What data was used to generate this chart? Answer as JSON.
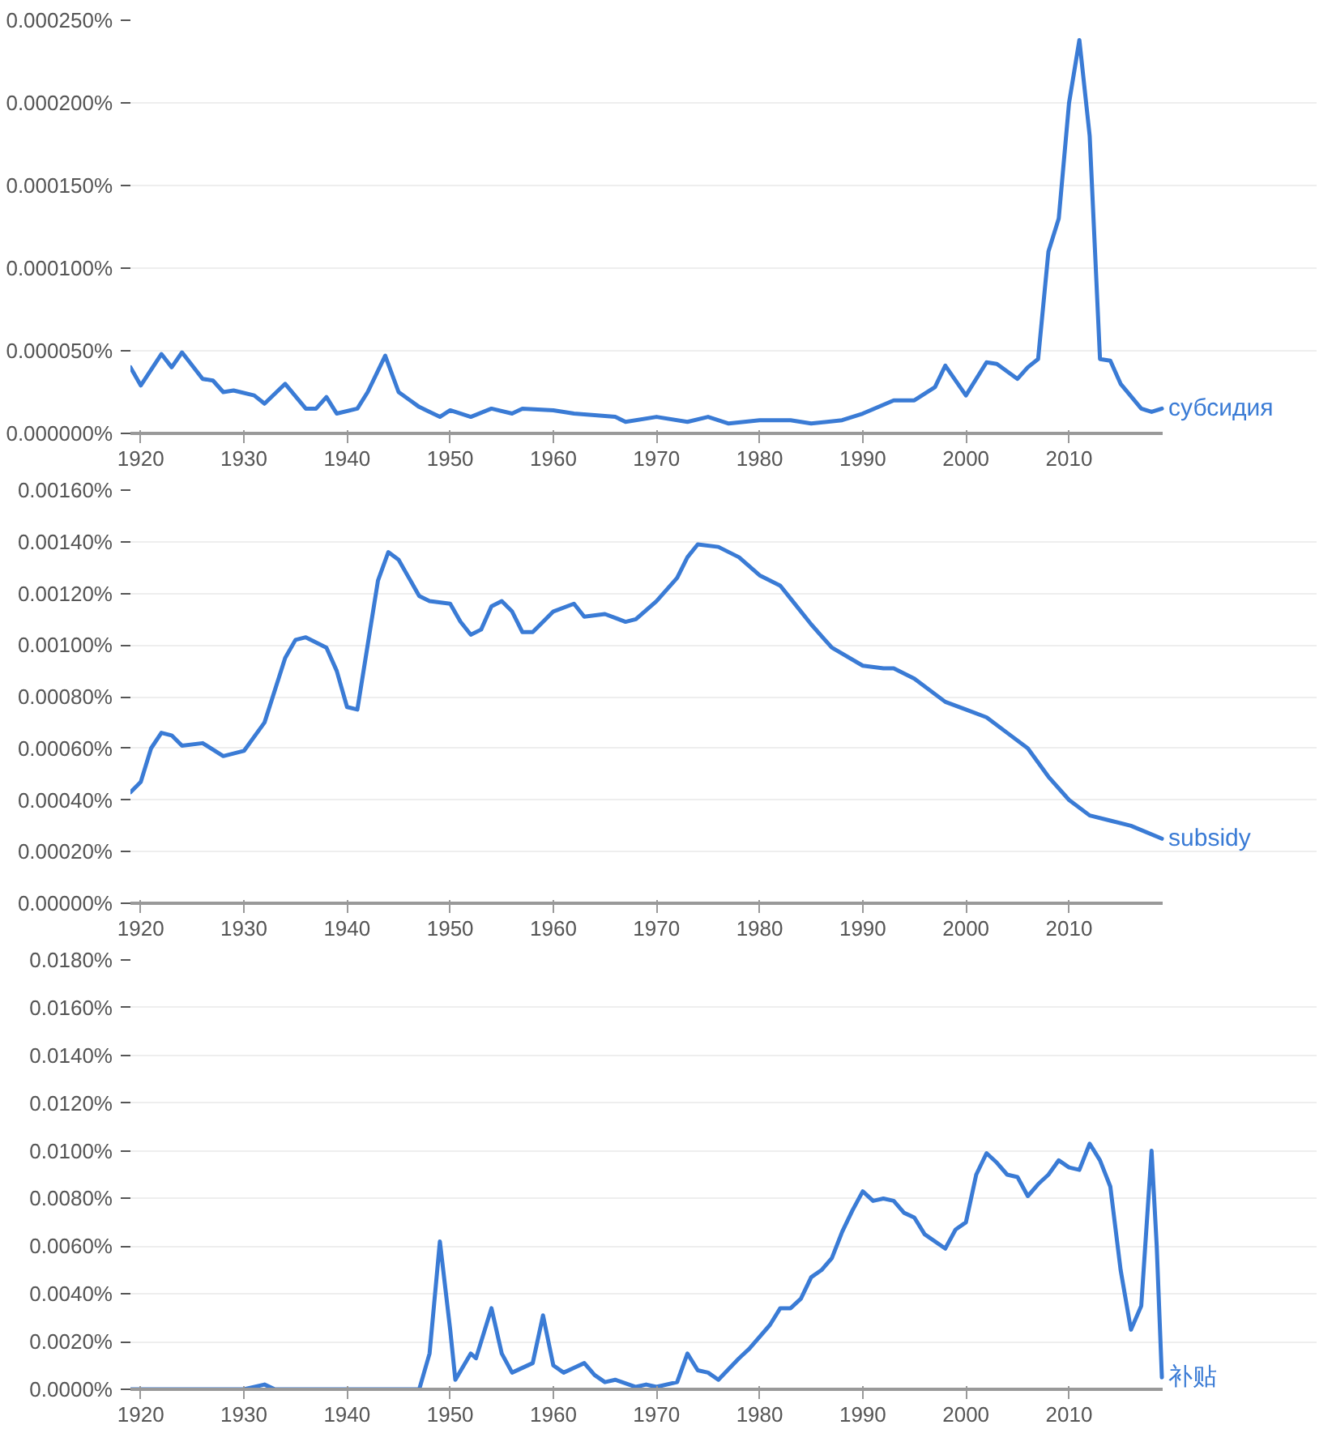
{
  "chart_data": [
    {
      "type": "line",
      "grid": "y",
      "xlim": [
        1919,
        2019
      ],
      "xticks": [
        1920,
        1930,
        1940,
        1950,
        1960,
        1970,
        1980,
        1990,
        2000,
        2010
      ],
      "ylim": [
        0,
        0.00025
      ],
      "yticks": [
        {
          "value": 0,
          "label": "0.000000%"
        },
        {
          "value": 5e-05,
          "label": "0.000050%"
        },
        {
          "value": 0.0001,
          "label": "0.000100%"
        },
        {
          "value": 0.00015,
          "label": "0.000150%"
        },
        {
          "value": 0.0002,
          "label": "0.000200%"
        },
        {
          "value": 0.00025,
          "label": "0.000250%"
        }
      ],
      "series": [
        {
          "name": "субсидия",
          "color": "#3a7bd5",
          "x": [
            1919,
            1920,
            1922,
            1923,
            1924,
            1926,
            1927,
            1928,
            1929,
            1931,
            1932,
            1934,
            1936,
            1937,
            1938,
            1939,
            1941,
            1942,
            1943.7,
            1945,
            1947,
            1949,
            1950,
            1952,
            1954,
            1956,
            1957,
            1960,
            1962,
            1964,
            1966,
            1967,
            1970,
            1973,
            1975,
            1977,
            1980,
            1983,
            1985,
            1988,
            1990,
            1993,
            1995,
            1997,
            1998,
            2000,
            2002,
            2003,
            2005,
            2006,
            2007,
            2008,
            2009,
            2010,
            2011,
            2012,
            2013,
            2014,
            2015,
            2017,
            2018,
            2019
          ],
          "values": [
            4e-05,
            2.9e-05,
            4.8e-05,
            4e-05,
            4.9e-05,
            3.3e-05,
            3.2e-05,
            2.5e-05,
            2.6e-05,
            2.3e-05,
            1.8e-05,
            3e-05,
            1.5e-05,
            1.5e-05,
            2.2e-05,
            1.2e-05,
            1.5e-05,
            2.5e-05,
            4.7e-05,
            2.5e-05,
            1.6e-05,
            1e-05,
            1.4e-05,
            1e-05,
            1.5e-05,
            1.2e-05,
            1.5e-05,
            1.4e-05,
            1.2e-05,
            1.1e-05,
            1e-05,
            7e-06,
            1e-05,
            7e-06,
            1e-05,
            6e-06,
            8e-06,
            8e-06,
            6e-06,
            8e-06,
            1.2e-05,
            2e-05,
            2e-05,
            2.8e-05,
            4.1e-05,
            2.3e-05,
            4.3e-05,
            4.2e-05,
            3.3e-05,
            4e-05,
            4.5e-05,
            0.00011,
            0.00013,
            0.0002,
            0.000238,
            0.00018,
            4.5e-05,
            4.4e-05,
            3e-05,
            1.5e-05,
            1.3e-05,
            1.5e-05
          ]
        }
      ]
    },
    {
      "type": "line",
      "grid": "y",
      "xlim": [
        1919,
        2019
      ],
      "xticks": [
        1920,
        1930,
        1940,
        1950,
        1960,
        1970,
        1980,
        1990,
        2000,
        2010
      ],
      "ylim": [
        0,
        0.0016
      ],
      "yticks": [
        {
          "value": 0,
          "label": "0.00000%"
        },
        {
          "value": 0.0002,
          "label": "0.00020%"
        },
        {
          "value": 0.0004,
          "label": "0.00040%"
        },
        {
          "value": 0.0006,
          "label": "0.00060%"
        },
        {
          "value": 0.0008,
          "label": "0.00080%"
        },
        {
          "value": 0.001,
          "label": "0.00100%"
        },
        {
          "value": 0.0012,
          "label": "0.00120%"
        },
        {
          "value": 0.0014,
          "label": "0.00140%"
        },
        {
          "value": 0.0016,
          "label": "0.00160%"
        }
      ],
      "series": [
        {
          "name": "subsidy",
          "color": "#3a7bd5",
          "x": [
            1919,
            1920,
            1921,
            1922,
            1923,
            1924,
            1926,
            1928,
            1930,
            1932,
            1934,
            1935,
            1936,
            1938,
            1939,
            1940,
            1941,
            1942,
            1943,
            1944,
            1945,
            1946,
            1947,
            1948,
            1950,
            1951,
            1952,
            1953,
            1954,
            1955,
            1956,
            1957,
            1958,
            1960,
            1962,
            1963,
            1965,
            1967,
            1968,
            1970,
            1972,
            1973,
            1974,
            1976,
            1978,
            1980,
            1982,
            1983,
            1985,
            1987,
            1990,
            1992,
            1993,
            1995,
            1998,
            2000,
            2002,
            2004,
            2006,
            2008,
            2010,
            2012,
            2014,
            2016,
            2019
          ],
          "values": [
            0.00043,
            0.00047,
            0.0006,
            0.00066,
            0.00065,
            0.00061,
            0.00062,
            0.00057,
            0.00059,
            0.0007,
            0.00095,
            0.00102,
            0.00103,
            0.00099,
            0.0009,
            0.00076,
            0.00075,
            0.001,
            0.00125,
            0.00136,
            0.00133,
            0.00126,
            0.00119,
            0.00117,
            0.00116,
            0.00109,
            0.00104,
            0.00106,
            0.00115,
            0.00117,
            0.00113,
            0.00105,
            0.00105,
            0.00113,
            0.00116,
            0.00111,
            0.00112,
            0.00109,
            0.0011,
            0.00117,
            0.00126,
            0.00134,
            0.00139,
            0.00138,
            0.00134,
            0.00127,
            0.00123,
            0.00118,
            0.00108,
            0.00099,
            0.00092,
            0.00091,
            0.00091,
            0.00087,
            0.00078,
            0.00075,
            0.00072,
            0.00066,
            0.0006,
            0.00049,
            0.0004,
            0.00034,
            0.00032,
            0.0003,
            0.00025
          ]
        }
      ]
    },
    {
      "type": "line",
      "grid": "y",
      "xlim": [
        1919,
        2019
      ],
      "xticks": [
        1920,
        1930,
        1940,
        1950,
        1960,
        1970,
        1980,
        1990,
        2000,
        2010
      ],
      "ylim": [
        0,
        0.018
      ],
      "yticks": [
        {
          "value": 0,
          "label": "0.0000%"
        },
        {
          "value": 0.002,
          "label": "0.0020%"
        },
        {
          "value": 0.004,
          "label": "0.0040%"
        },
        {
          "value": 0.006,
          "label": "0.0060%"
        },
        {
          "value": 0.008,
          "label": "0.0080%"
        },
        {
          "value": 0.01,
          "label": "0.0100%"
        },
        {
          "value": 0.012,
          "label": "0.0120%"
        },
        {
          "value": 0.014,
          "label": "0.0140%"
        },
        {
          "value": 0.016,
          "label": "0.0160%"
        },
        {
          "value": 0.018,
          "label": "0.0180%"
        }
      ],
      "series": [
        {
          "name": "补贴",
          "color": "#3a7bd5",
          "x": [
            1919,
            1930,
            1932,
            1933,
            1947,
            1948,
            1949,
            1950,
            1950.5,
            1952,
            1952.5,
            1954,
            1955,
            1956,
            1958,
            1959,
            1960,
            1961,
            1962,
            1963,
            1964,
            1965,
            1966,
            1968,
            1969,
            1970,
            1972,
            1973,
            1974,
            1975,
            1976,
            1978,
            1979,
            1981,
            1982,
            1983,
            1984,
            1985,
            1986,
            1987,
            1988,
            1989,
            1990,
            1991,
            1992,
            1993,
            1994,
            1995,
            1996,
            1998,
            1999,
            2000,
            2001,
            2002,
            2003,
            2004,
            2005,
            2006,
            2007,
            2008,
            2009,
            2010,
            2011,
            2012,
            2013,
            2014,
            2015,
            2016,
            2017,
            2018,
            2018.5,
            2019
          ],
          "values": [
            0,
            0,
            0.0002,
            0,
            0,
            0.0015,
            0.0062,
            0.0025,
            0.0004,
            0.0015,
            0.0013,
            0.0034,
            0.0015,
            0.0007,
            0.0011,
            0.0031,
            0.001,
            0.0007,
            0.0009,
            0.0011,
            0.0006,
            0.0003,
            0.0004,
            0.0001,
            0.0002,
            0.0001,
            0.0003,
            0.0015,
            0.0008,
            0.0007,
            0.0004,
            0.0013,
            0.0017,
            0.0027,
            0.0034,
            0.0034,
            0.0038,
            0.0047,
            0.005,
            0.0055,
            0.0066,
            0.0075,
            0.0083,
            0.0079,
            0.008,
            0.0079,
            0.0074,
            0.0072,
            0.0065,
            0.0059,
            0.0067,
            0.007,
            0.009,
            0.0099,
            0.0095,
            0.009,
            0.0089,
            0.0081,
            0.0086,
            0.009,
            0.0096,
            0.0093,
            0.0092,
            0.0103,
            0.0096,
            0.0085,
            0.005,
            0.0025,
            0.0035,
            0.01,
            0.006,
            0.0005
          ]
        }
      ]
    }
  ]
}
